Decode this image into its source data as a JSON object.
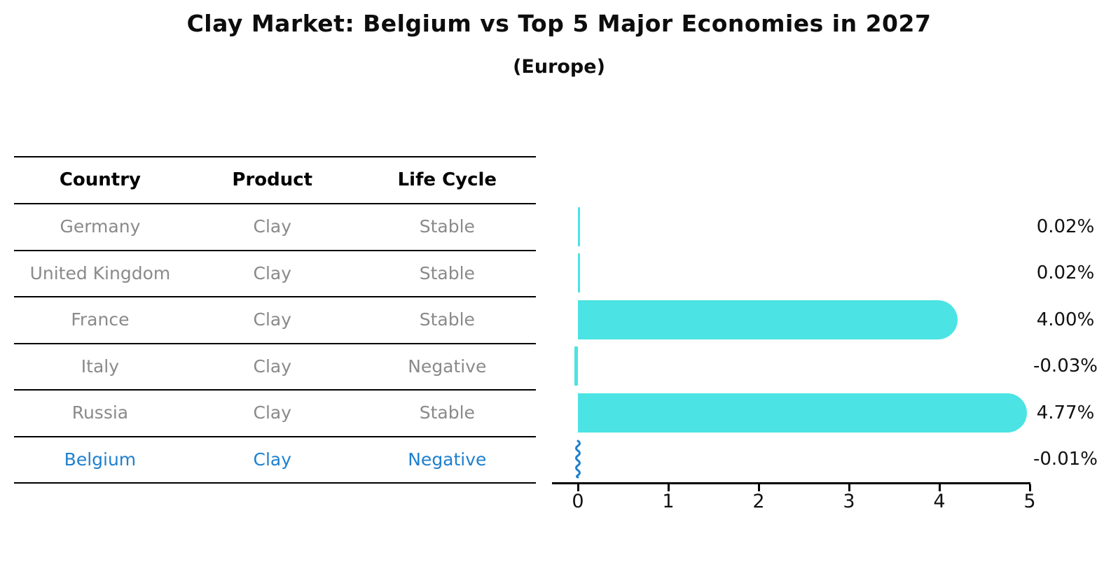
{
  "header": {
    "title": "Clay Market: Belgium vs Top 5 Major Economies in 2027",
    "subtitle": "(Europe)"
  },
  "table": {
    "columns": [
      "Country",
      "Product",
      "Life Cycle"
    ],
    "rows": [
      {
        "country": "Germany",
        "product": "Clay",
        "life_cycle": "Stable",
        "highlight": false
      },
      {
        "country": "United Kingdom",
        "product": "Clay",
        "life_cycle": "Stable",
        "highlight": false
      },
      {
        "country": "France",
        "product": "Clay",
        "life_cycle": "Stable",
        "highlight": false
      },
      {
        "country": "Italy",
        "product": "Clay",
        "life_cycle": "Negative",
        "highlight": false
      },
      {
        "country": "Russia",
        "product": "Clay",
        "life_cycle": "Stable",
        "highlight": false
      },
      {
        "country": "Belgium",
        "product": "Clay",
        "life_cycle": "Negative",
        "highlight": true
      }
    ]
  },
  "chart_data": {
    "type": "bar",
    "orientation": "horizontal",
    "title": "Clay Market: Belgium vs Top 5 Major Economies in 2027",
    "subtitle": "(Europe)",
    "categories": [
      "Germany",
      "United Kingdom",
      "France",
      "Italy",
      "Russia",
      "Belgium"
    ],
    "values": [
      0.02,
      0.02,
      4.0,
      -0.03,
      4.77,
      -0.01
    ],
    "value_labels": [
      "0.02%",
      "0.02%",
      "4.00%",
      "-0.03%",
      "4.77%",
      "-0.01%"
    ],
    "xlabel": "",
    "ylabel": "",
    "xlim": [
      0,
      5
    ],
    "xticks": [
      0,
      1,
      2,
      3,
      4,
      5
    ],
    "grid": false,
    "legend": false,
    "highlight_index": 5
  },
  "colors": {
    "bar": "#4be3e3",
    "highlight": "#1f80ce",
    "row_text": "#8a8a8a",
    "header_text": "#000000",
    "axis": "#000000"
  }
}
